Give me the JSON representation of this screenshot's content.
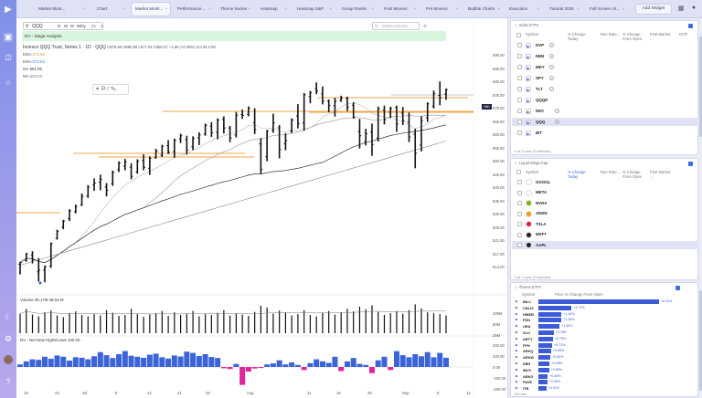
{
  "tabs": [
    {
      "label": "Market Mont...",
      "active": false
    },
    {
      "label": "Chart",
      "active": false
    },
    {
      "label": "Market Monit...",
      "active": true
    },
    {
      "label": "Performance...",
      "active": false
    },
    {
      "label": "Theme tracker",
      "active": false
    },
    {
      "label": "Heatmap",
      "active": false
    },
    {
      "label": "Heatmap S&P",
      "active": false
    },
    {
      "label": "Group Ranks",
      "active": false
    },
    {
      "label": "Post Movers",
      "active": false
    },
    {
      "label": "Pre Movers",
      "active": false
    },
    {
      "label": "Bubble Charts",
      "active": false
    },
    {
      "label": "Execution",
      "active": false
    },
    {
      "label": "Tutorial 2025",
      "active": false
    },
    {
      "label": "Full Screen ch...",
      "active": false
    }
  ],
  "add_widget_label": "Add Widget",
  "chart": {
    "symbol": "QQQ",
    "toolbar_buttons": [
      "D",
      "W",
      "M",
      "Wkly",
      "ƒx",
      "≡"
    ],
    "watchlist_placeholder": "Market Monitor",
    "banner": "DV - Stage Analysis",
    "title": "Invesco QQQ Trust, Series 1 · 1D · QQQ",
    "ohlc": "O579.65 H580.95 L577.04 C580.47 +1.60 (+0.28%) Vol 39.17M",
    "mas": [
      {
        "label": "EMA",
        "value": "572.56"
      },
      {
        "label": "EMA",
        "value": "574.63"
      },
      {
        "label": "MA",
        "value": "561.90"
      },
      {
        "label": "MA",
        "value": "520.03"
      }
    ],
    "last_price_tag": "580",
    "price_labels": [
      "590.00",
      "585.00",
      "580.00",
      "575.00",
      "570.00",
      "565.00",
      "560.00",
      "555.00",
      "550.00",
      "545.00",
      "540.00",
      "535.00",
      "530.00",
      "525.00",
      "521.00",
      "517.00",
      "514.00"
    ],
    "volume_label": "Volume  39.17M  48.54 M",
    "volume_scale": [
      "100M",
      "50M",
      "25M"
    ],
    "nhnl_label": "DV - Net New Highs/Lows  100.00",
    "nhnl_scale": [
      "200.00",
      "100.00",
      "0.00",
      "-100.00",
      "-200.00"
    ],
    "date_labels": [
      "18",
      "23",
      "Jul",
      "8",
      "14",
      "21",
      "28",
      "Aug",
      "11",
      "18",
      "25",
      "Sep",
      "8",
      "12"
    ],
    "candles": [
      [
        520.3,
        521.2,
        516.8,
        520.9
      ],
      [
        521.6,
        524.2,
        521.2,
        523.9
      ],
      [
        523.4,
        524.8,
        520.6,
        521.9
      ],
      [
        517.7,
        522.4,
        514.3,
        518.3
      ],
      [
        518.3,
        519.9,
        514.1,
        519.5
      ],
      [
        519.6,
        527.8,
        519.1,
        527.4
      ],
      [
        529.2,
        532.2,
        528.8,
        531.7
      ],
      [
        533.1,
        535.6,
        532.4,
        535.2
      ],
      [
        536.0,
        539.3,
        535.2,
        538.7
      ],
      [
        538.4,
        540.9,
        537.9,
        540.2
      ],
      [
        540.8,
        544.7,
        540.4,
        543.7
      ],
      [
        543.9,
        547.6,
        543.2,
        546.9
      ],
      [
        547.6,
        549.9,
        545.6,
        548.3
      ],
      [
        548.6,
        551.2,
        545.8,
        549.6
      ],
      [
        546.9,
        548.3,
        543.7,
        545.8
      ],
      [
        548.1,
        552.6,
        547.3,
        552.0
      ],
      [
        552.9,
        555.8,
        552.1,
        555.2
      ],
      [
        554.1,
        556.6,
        552.7,
        555.6
      ],
      [
        553.8,
        555.1,
        549.6,
        550.6
      ],
      [
        552.1,
        556.5,
        551.5,
        555.8
      ],
      [
        556.1,
        558.2,
        552.7,
        553.7
      ],
      [
        553.4,
        557.5,
        551.1,
        556.8
      ],
      [
        557.1,
        560.1,
        556.7,
        559.3
      ],
      [
        557.9,
        561.5,
        557.3,
        561.0
      ],
      [
        561.2,
        563.1,
        558.3,
        558.9
      ],
      [
        559.1,
        563.6,
        557.0,
        563.1
      ],
      [
        563.5,
        565.3,
        562.1,
        564.6
      ],
      [
        563.3,
        564.6,
        558.1,
        559.6
      ],
      [
        560.8,
        564.4,
        559.6,
        563.6
      ],
      [
        563.9,
        565.8,
        561.4,
        564.9
      ],
      [
        565.2,
        568.8,
        564.6,
        568.2
      ],
      [
        567.9,
        569.3,
        564.2,
        565.6
      ],
      [
        565.8,
        570.6,
        563.4,
        570.0
      ],
      [
        570.2,
        571.3,
        565.4,
        567.3
      ],
      [
        567.3,
        568.0,
        562.4,
        563.8
      ],
      [
        564.9,
        572.8,
        564.0,
        571.7
      ],
      [
        571.9,
        573.6,
        570.4,
        571.6
      ],
      [
        572.0,
        574.7,
        571.3,
        574.1
      ],
      [
        569.1,
        574.1,
        565.2,
        566.7
      ],
      [
        561.8,
        563.8,
        551.3,
        553.0
      ],
      [
        557.4,
        566.6,
        555.8,
        566.2
      ],
      [
        566.6,
        572.2,
        565.6,
        569.0
      ],
      [
        567.3,
        568.3,
        556.8,
        559.8
      ],
      [
        561.9,
        565.5,
        559.6,
        562.9
      ],
      [
        566.3,
        570.6,
        565.5,
        570.0
      ],
      [
        571.4,
        575.5,
        567.1,
        568.8
      ],
      [
        569.0,
        579.3,
        566.3,
        578.7
      ],
      [
        578.1,
        580.1,
        575.8,
        579.4
      ],
      [
        580.8,
        583.0,
        578.9,
        580.0
      ],
      [
        579.0,
        581.6,
        575.4,
        576.5
      ],
      [
        576.6,
        577.1,
        572.7,
        575.1
      ],
      [
        574.9,
        577.7,
        571.2,
        576.5
      ],
      [
        576.8,
        578.4,
        576.3,
        577.6
      ],
      [
        577.4,
        578.1,
        573.1,
        574.5
      ],
      [
        575.1,
        576.2,
        570.5,
        571.1
      ],
      [
        566.1,
        570.4,
        560.2,
        564.6
      ],
      [
        562.5,
        567.0,
        561.2,
        565.3
      ],
      [
        565.9,
        568.8,
        557.7,
        561.6
      ],
      [
        563.8,
        574.7,
        562.6,
        573.8
      ],
      [
        573.4,
        575.0,
        568.5,
        570.2
      ],
      [
        572.7,
        574.6,
        570.7,
        574.0
      ],
      [
        574.4,
        575.0,
        565.9,
        568.7
      ],
      [
        572.4,
        574.5,
        568.3,
        569.8
      ],
      [
        569.3,
        572.6,
        562.4,
        564.2
      ],
      [
        565.1,
        567.0,
        553.4,
        558.6
      ],
      [
        561.4,
        571.3,
        559.2,
        569.8
      ],
      [
        570.8,
        576.1,
        569.4,
        575.6
      ],
      [
        574.8,
        580.2,
        574.0,
        579.1
      ],
      [
        578.5,
        583.3,
        575.1,
        577.7
      ],
      [
        579.0,
        580.9,
        577.0,
        580.5
      ]
    ],
    "volumes": [
      44,
      55,
      42,
      38,
      47,
      51,
      40,
      36,
      45,
      49,
      41,
      38,
      43,
      40,
      52,
      46,
      39,
      41,
      55,
      43,
      37,
      42,
      45,
      50,
      39,
      47,
      41,
      44,
      50,
      38,
      43,
      41,
      46,
      52,
      40,
      45,
      42,
      39,
      48,
      62,
      58,
      44,
      51,
      47,
      40,
      43,
      52,
      41,
      38,
      46,
      50,
      42,
      47,
      55,
      49,
      60,
      54,
      63,
      48,
      41,
      45,
      50,
      44,
      52,
      65,
      56,
      47,
      45,
      43,
      40
    ],
    "nhnl": [
      10,
      22,
      30,
      28,
      40,
      32,
      45,
      40,
      25,
      38,
      36,
      30,
      42,
      58,
      46,
      35,
      50,
      62,
      44,
      40,
      36,
      48,
      52,
      38,
      33,
      45,
      41,
      60,
      55,
      43,
      50,
      39,
      35,
      -5,
      -8,
      12,
      -70,
      -18,
      -6,
      -4,
      10,
      14,
      26,
      10,
      18,
      8,
      -12,
      15,
      30,
      22,
      16,
      40,
      -16,
      22,
      35,
      12,
      8,
      -24,
      26,
      40,
      -12,
      62,
      46,
      38,
      50,
      42,
      58,
      38,
      55,
      36
    ]
  },
  "index_etfs": {
    "title": "Index ETFs",
    "columns": [
      "Symbol",
      "% Change Today",
      "Run Rate...",
      "% Change From Open",
      "Post Market ...",
      "DCR"
    ],
    "rows": [
      {
        "symbol": "DVP",
        "selected": false
      },
      {
        "symbol": "IWM",
        "selected": false
      },
      {
        "symbol": "MDY",
        "selected": false
      },
      {
        "symbol": "SPY",
        "selected": false
      },
      {
        "symbol": "TLT",
        "selected": false
      },
      {
        "symbol": "QQQE",
        "selected": false
      },
      {
        "symbol": "IWO",
        "selected": false
      },
      {
        "symbol": "QQQ",
        "selected": true
      },
      {
        "symbol": "BIT",
        "selected": false
      }
    ],
    "footer": "0 of 9 rows (0 selected)"
  },
  "liquid_mega": {
    "title": "Liquid Mega Cap",
    "columns": [
      "Symbol",
      "% Change Today",
      "Run Rate...",
      "% Change From Open",
      "Post Market ..."
    ],
    "rows": [
      {
        "symbol": "GOOGL",
        "logo_color": "#ffffff",
        "selected": false
      },
      {
        "symbol": "META",
        "logo_color": "#ffffff",
        "selected": false
      },
      {
        "symbol": "NVDA",
        "logo_color": "#76b900",
        "selected": false
      },
      {
        "symbol": "AMZN",
        "logo_color": "#ff9900",
        "selected": false
      },
      {
        "symbol": "TSLA",
        "logo_color": "#e31937",
        "selected": false
      },
      {
        "symbol": "MSFT",
        "logo_color": "#222222",
        "selected": false
      },
      {
        "symbol": "AAPL",
        "logo_color": "#222222",
        "selected": true
      }
    ],
    "footer": "0 of 7 rows (0 selected)"
  },
  "theme_etfs": {
    "title": "Theme ETFs",
    "columns": [
      "Symbol",
      "Price % Change From Open"
    ],
    "rows": [
      {
        "symbol": "IBLC",
        "value": 6.2,
        "label": "+6.20%"
      },
      {
        "symbol": "CNLIX",
        "value": 1.71,
        "label": "+1.71%"
      },
      {
        "symbol": "HWEB",
        "value": 1.18,
        "label": "+1.18%"
      },
      {
        "symbol": "FDN",
        "value": 1.18,
        "label": "+1.18%"
      },
      {
        "symbol": "URA",
        "value": 1.09,
        "label": "+1.09%"
      },
      {
        "symbol": "XLU",
        "value": 0.78,
        "label": "+0.78%"
      },
      {
        "symbol": "ARTY",
        "value": 0.75,
        "label": "+0.75%"
      },
      {
        "symbol": "FFH",
        "value": 0.71,
        "label": "+0.71%"
      },
      {
        "symbol": "ARKQ",
        "value": 0.65,
        "label": "+0.65%"
      },
      {
        "symbol": "ARKW",
        "value": 0.62,
        "label": "+0.62%"
      },
      {
        "symbol": "SBH",
        "value": 0.58,
        "label": "+0.58%"
      },
      {
        "symbol": "IBUY",
        "value": 0.55,
        "label": "+0.55%"
      },
      {
        "symbol": "ARKG",
        "value": 0.48,
        "label": "+0.48%"
      },
      {
        "symbol": "PAVE",
        "value": 0.45,
        "label": "+0.45%"
      },
      {
        "symbol": "ITB",
        "value": 0.41,
        "label": "+0.41%"
      }
    ],
    "footer": "26 rows"
  }
}
